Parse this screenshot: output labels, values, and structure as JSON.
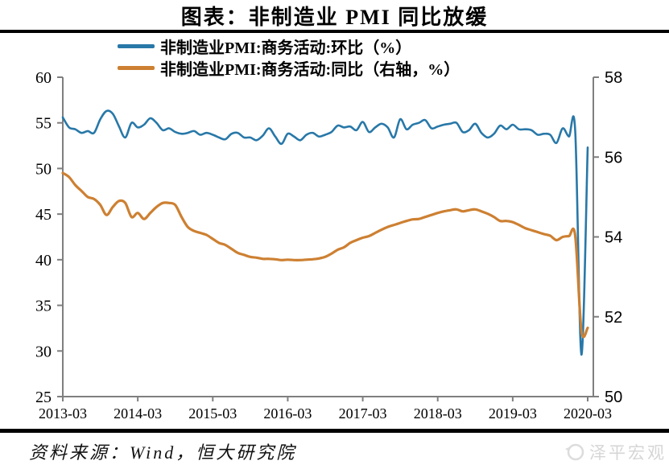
{
  "page": {
    "title": "图表：非制造业 PMI 同比放缓",
    "source_note": "资料来源：Wind，恒大研究院",
    "watermark": "泽平宏观"
  },
  "chart_data": {
    "type": "line",
    "title": "图表：非制造业 PMI 同比放缓",
    "grid": false,
    "legend_position": "top-left",
    "x_start": "2013-03",
    "x_end": "2020-03",
    "x_frequency": "monthly",
    "x_tick_labels": [
      "2013-03",
      "2014-03",
      "2015-03",
      "2016-03",
      "2017-03",
      "2018-03",
      "2019-03",
      "2020-03"
    ],
    "left_axis": {
      "min": 25,
      "max": 60,
      "ticks": [
        60,
        55,
        50,
        45,
        40,
        35,
        30,
        25
      ]
    },
    "right_axis": {
      "min": 50,
      "max": 58,
      "ticks": [
        58,
        56,
        54,
        52,
        50
      ]
    },
    "axis_color": "#7f7f7f",
    "series": [
      {
        "name": "非制造业PMI:商务活动:环比（%）",
        "axis": "left",
        "color": "#2878a8",
        "stroke_width": 2.6,
        "values": [
          55.6,
          54.5,
          54.3,
          53.9,
          54.1,
          53.9,
          55.4,
          56.3,
          56.0,
          54.6,
          53.4,
          55.0,
          54.5,
          54.8,
          55.5,
          55.0,
          54.2,
          54.4,
          54.0,
          53.8,
          53.9,
          54.1,
          53.7,
          53.9,
          53.7,
          53.4,
          53.2,
          53.8,
          53.9,
          53.4,
          53.4,
          53.1,
          53.6,
          54.4,
          53.5,
          52.7,
          53.8,
          53.5,
          53.1,
          53.7,
          53.9,
          53.5,
          53.7,
          54.0,
          54.7,
          54.5,
          54.6,
          54.2,
          55.1,
          54.0,
          54.5,
          54.9,
          54.5,
          53.4,
          55.4,
          54.3,
          54.8,
          55.0,
          55.3,
          54.4,
          54.6,
          54.8,
          54.9,
          55.0,
          54.0,
          54.2,
          54.9,
          53.9,
          53.4,
          53.8,
          54.7,
          54.3,
          54.8,
          54.3,
          54.3,
          54.2,
          53.7,
          53.8,
          53.7,
          52.8,
          54.4,
          53.5,
          54.1,
          29.6,
          52.3
        ]
      },
      {
        "name": "非制造业PMI:商务活动:同比（右轴，%）",
        "axis": "right",
        "color": "#cd8032",
        "stroke_width": 3.2,
        "values": [
          55.6,
          55.5,
          55.3,
          55.15,
          55.0,
          54.95,
          54.8,
          54.55,
          54.75,
          54.9,
          54.85,
          54.5,
          54.6,
          54.45,
          54.6,
          54.75,
          54.85,
          54.85,
          54.8,
          54.5,
          54.25,
          54.15,
          54.1,
          54.05,
          53.95,
          53.85,
          53.8,
          53.7,
          53.6,
          53.55,
          53.5,
          53.48,
          53.45,
          53.45,
          53.44,
          53.42,
          53.43,
          53.42,
          53.42,
          53.43,
          53.44,
          53.46,
          53.5,
          53.58,
          53.68,
          53.74,
          53.85,
          53.92,
          53.98,
          54.02,
          54.1,
          54.18,
          54.25,
          54.3,
          54.35,
          54.4,
          54.44,
          54.45,
          54.5,
          54.55,
          54.6,
          54.64,
          54.67,
          54.69,
          54.64,
          54.67,
          54.69,
          54.64,
          54.58,
          54.5,
          54.4,
          54.4,
          54.37,
          54.3,
          54.22,
          54.17,
          54.12,
          54.07,
          54.03,
          53.92,
          54.0,
          54.02,
          54.03,
          51.65,
          51.72
        ]
      }
    ]
  }
}
